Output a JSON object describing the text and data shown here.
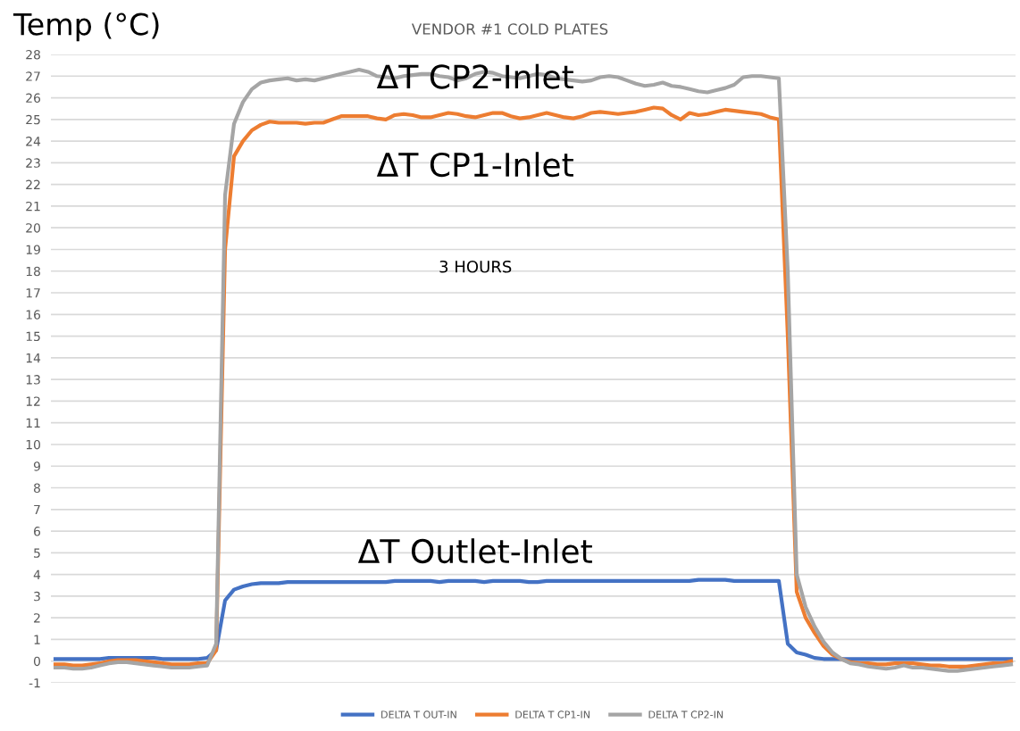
{
  "chart_data": {
    "type": "line",
    "title": "VENDOR #1 COLD PLATES",
    "ylabel": "Temp (°C)",
    "annotations": [
      "ΔT CP2-Inlet",
      "ΔT CP1-Inlet",
      "3 HOURS",
      "ΔT Outlet-Inlet"
    ],
    "categories": [
      null,
      null,
      null,
      null,
      null,
      null,
      null,
      null,
      null,
      null,
      null,
      null,
      null,
      null,
      null,
      null,
      null,
      null,
      null,
      null,
      null,
      null,
      null,
      null,
      null,
      null,
      null,
      null,
      null,
      null,
      null,
      null,
      null,
      null,
      null,
      null,
      null,
      null,
      null,
      null,
      null,
      null,
      null,
      null,
      null,
      null,
      null,
      null,
      null,
      null,
      null,
      null,
      null,
      null,
      null,
      null,
      null,
      null,
      null,
      null,
      null,
      null,
      null,
      null,
      null,
      null,
      null,
      null,
      null,
      null,
      null,
      null,
      null,
      null,
      null,
      null,
      null,
      null,
      null,
      null,
      null,
      null,
      null,
      null,
      null,
      null,
      null,
      null,
      null,
      null,
      null,
      null,
      null,
      null,
      null,
      null,
      null,
      null,
      null,
      null,
      null,
      null,
      null,
      null,
      null,
      null,
      null,
      null
    ],
    "series": [
      {
        "name": "DELTA T OUT-IN",
        "color": "#4472c4",
        "values": [
          0.1,
          0.1,
          0.1,
          0.1,
          0.1,
          0.1,
          0.15,
          0.15,
          0.15,
          0.15,
          0.15,
          0.15,
          0.1,
          0.1,
          0.1,
          0.1,
          0.1,
          0.15,
          0.5,
          2.8,
          3.3,
          3.45,
          3.55,
          3.6,
          3.6,
          3.6,
          3.65,
          3.65,
          3.65,
          3.65,
          3.65,
          3.65,
          3.65,
          3.65,
          3.65,
          3.65,
          3.65,
          3.65,
          3.7,
          3.7,
          3.7,
          3.7,
          3.7,
          3.65,
          3.7,
          3.7,
          3.7,
          3.7,
          3.65,
          3.7,
          3.7,
          3.7,
          3.7,
          3.65,
          3.65,
          3.7,
          3.7,
          3.7,
          3.7,
          3.7,
          3.7,
          3.7,
          3.7,
          3.7,
          3.7,
          3.7,
          3.7,
          3.7,
          3.7,
          3.7,
          3.7,
          3.7,
          3.75,
          3.75,
          3.75,
          3.75,
          3.7,
          3.7,
          3.7,
          3.7,
          3.7,
          3.7,
          0.8,
          0.4,
          0.3,
          0.15,
          0.1,
          0.1,
          0.1,
          0.1,
          0.1,
          0.1,
          0.1,
          0.1,
          0.1,
          0.1,
          0.1,
          0.1,
          0.1,
          0.1,
          0.1,
          0.1,
          0.1,
          0.1,
          0.1,
          0.1,
          0.1,
          0.1
        ]
      },
      {
        "name": "DELTA T CP1-IN",
        "color": "#ed7d31",
        "values": [
          -0.15,
          -0.15,
          -0.2,
          -0.2,
          -0.15,
          -0.1,
          0.0,
          0.05,
          0.05,
          0.05,
          0.0,
          -0.05,
          -0.1,
          -0.15,
          -0.15,
          -0.15,
          -0.1,
          -0.1,
          0.5,
          19,
          23.3,
          24.0,
          24.5,
          24.75,
          24.9,
          24.85,
          24.85,
          24.85,
          24.8,
          24.85,
          24.85,
          25.0,
          25.15,
          25.15,
          25.15,
          25.15,
          25.05,
          25.0,
          25.2,
          25.25,
          25.2,
          25.1,
          25.1,
          25.2,
          25.3,
          25.25,
          25.15,
          25.1,
          25.2,
          25.3,
          25.3,
          25.15,
          25.05,
          25.1,
          25.2,
          25.3,
          25.2,
          25.1,
          25.05,
          25.15,
          25.3,
          25.35,
          25.3,
          25.25,
          25.3,
          25.35,
          25.45,
          25.55,
          25.5,
          25.2,
          25.0,
          25.3,
          25.2,
          25.25,
          25.35,
          25.45,
          25.4,
          25.35,
          25.3,
          25.25,
          25.1,
          25.0,
          15,
          3.2,
          2.0,
          1.3,
          0.7,
          0.3,
          0.1,
          -0.05,
          -0.1,
          -0.1,
          -0.15,
          -0.15,
          -0.1,
          -0.1,
          -0.1,
          -0.15,
          -0.2,
          -0.2,
          -0.25,
          -0.25,
          -0.25,
          -0.2,
          -0.15,
          -0.1,
          -0.1,
          0.0
        ]
      },
      {
        "name": "DELTA T CP2-IN",
        "color": "#a5a5a5",
        "values": [
          -0.3,
          -0.3,
          -0.35,
          -0.35,
          -0.3,
          -0.2,
          -0.1,
          -0.05,
          -0.05,
          -0.1,
          -0.15,
          -0.2,
          -0.25,
          -0.3,
          -0.3,
          -0.3,
          -0.25,
          -0.2,
          0.8,
          21.5,
          24.8,
          25.8,
          26.4,
          26.7,
          26.8,
          26.85,
          26.9,
          26.8,
          26.85,
          26.8,
          26.9,
          27.0,
          27.1,
          27.2,
          27.3,
          27.2,
          27.0,
          26.95,
          26.9,
          27.0,
          27.05,
          27.1,
          27.1,
          27.0,
          26.95,
          26.8,
          26.9,
          27.1,
          27.2,
          27.15,
          27.0,
          26.95,
          26.9,
          27.0,
          27.1,
          27.05,
          26.9,
          26.85,
          26.8,
          26.75,
          26.8,
          26.95,
          27.0,
          26.95,
          26.8,
          26.65,
          26.55,
          26.6,
          26.7,
          26.55,
          26.5,
          26.4,
          26.3,
          26.25,
          26.35,
          26.45,
          26.6,
          26.95,
          27.0,
          27.0,
          26.95,
          26.9,
          18,
          4,
          2.5,
          1.6,
          0.9,
          0.4,
          0.1,
          -0.1,
          -0.15,
          -0.25,
          -0.3,
          -0.35,
          -0.3,
          -0.2,
          -0.3,
          -0.3,
          -0.35,
          -0.4,
          -0.45,
          -0.45,
          -0.4,
          -0.35,
          -0.3,
          -0.25,
          -0.2,
          -0.15
        ]
      }
    ],
    "ylim": [
      -1,
      28
    ],
    "yticks": [
      -1,
      0,
      1,
      2,
      3,
      4,
      5,
      6,
      7,
      8,
      9,
      10,
      11,
      12,
      13,
      14,
      15,
      16,
      17,
      18,
      19,
      20,
      21,
      22,
      23,
      24,
      25,
      26,
      27,
      28
    ],
    "grid": "y",
    "legend": "bottom",
    "tick_labels": "y",
    "marker": "none",
    "line_style": "solid"
  }
}
